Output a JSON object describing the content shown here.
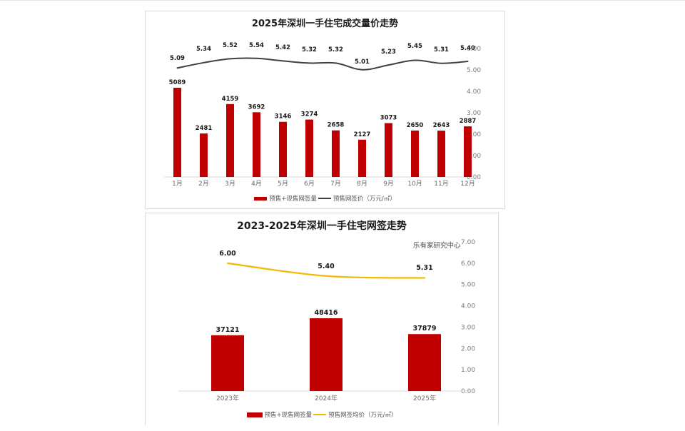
{
  "colors": {
    "bar": "#c00000",
    "line_chart1": "#404040",
    "line_chart2": "#f5b800",
    "axis_text": "#7a7a7a",
    "panel_border": "#dcdcdc"
  },
  "chart1": {
    "title": "2025年深圳一手住宅成交量价走势",
    "legend": {
      "bar_label": "预售+现售网签量",
      "line_label": "预售网签价（万元/㎡）"
    }
  },
  "chart2": {
    "title": "2023-2025年深圳一手住宅网签走势",
    "source": "乐有家研究中心",
    "legend": {
      "bar_label": "预售+现售网签量",
      "line_label": "预售网签均价（万元/㎡）"
    }
  },
  "chart_data": [
    {
      "type": "bar+line",
      "title": "2025年深圳一手住宅成交量价走势",
      "categories": [
        "1月",
        "2月",
        "3月",
        "4月",
        "5月",
        "6月",
        "7月",
        "8月",
        "9月",
        "10月",
        "11月",
        "12月"
      ],
      "series": [
        {
          "name": "预售+现售网签量",
          "kind": "bar",
          "axis": "primary-hidden",
          "values": [
            5089,
            2481,
            4159,
            3692,
            3146,
            3274,
            2658,
            2127,
            3073,
            2650,
            2643,
            2887
          ]
        },
        {
          "name": "预售网签价（万元/㎡）",
          "kind": "line",
          "axis": "secondary",
          "values": [
            5.09,
            5.34,
            5.52,
            5.54,
            5.42,
            5.32,
            5.32,
            5.01,
            5.23,
            5.45,
            5.31,
            5.4
          ]
        }
      ],
      "secondary_axis": {
        "ticks": [
          "0.00",
          "1.00",
          "2.00",
          "3.00",
          "4.00",
          "5.00",
          "6.00"
        ],
        "ylim": [
          0,
          6
        ]
      },
      "xlabel": "",
      "ylabel": "",
      "legend_position": "bottom",
      "grid": false
    },
    {
      "type": "bar+line",
      "title": "2023-2025年深圳一手住宅网签走势",
      "categories": [
        "2023年",
        "2024年",
        "2025年"
      ],
      "series": [
        {
          "name": "预售+现售网签量",
          "kind": "bar",
          "axis": "primary-hidden",
          "values": [
            37121,
            48416,
            37879
          ]
        },
        {
          "name": "预售网签均价（万元/㎡）",
          "kind": "line",
          "axis": "secondary",
          "values": [
            6.0,
            5.4,
            5.31
          ]
        }
      ],
      "secondary_axis": {
        "ticks": [
          "0.00",
          "1.00",
          "2.00",
          "3.00",
          "4.00",
          "5.00",
          "6.00",
          "7.00"
        ],
        "ylim": [
          0,
          7
        ]
      },
      "annotation": "乐有家研究中心",
      "xlabel": "",
      "ylabel": "",
      "legend_position": "bottom",
      "grid": false
    }
  ]
}
